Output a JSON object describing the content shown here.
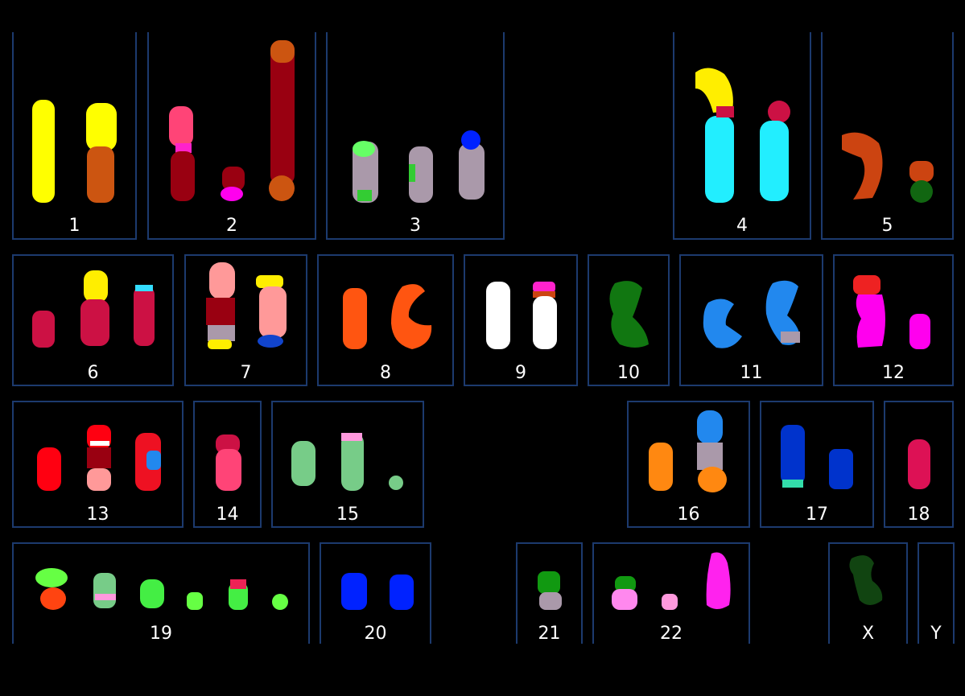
{
  "karyotype": {
    "groups": [
      {
        "label": "1"
      },
      {
        "label": "2"
      },
      {
        "label": "3"
      },
      {
        "label": "4"
      },
      {
        "label": "5"
      },
      {
        "label": "6"
      },
      {
        "label": "7"
      },
      {
        "label": "8"
      },
      {
        "label": "9"
      },
      {
        "label": "10"
      },
      {
        "label": "11"
      },
      {
        "label": "12"
      },
      {
        "label": "13"
      },
      {
        "label": "14"
      },
      {
        "label": "15"
      },
      {
        "label": "16"
      },
      {
        "label": "17"
      },
      {
        "label": "18"
      },
      {
        "label": "19"
      },
      {
        "label": "20"
      },
      {
        "label": "21"
      },
      {
        "label": "22"
      },
      {
        "label": "X"
      },
      {
        "label": "Y"
      }
    ],
    "colors": {
      "background": "#000000",
      "frame": "#1c3a6e",
      "label": "#ffffff"
    }
  }
}
